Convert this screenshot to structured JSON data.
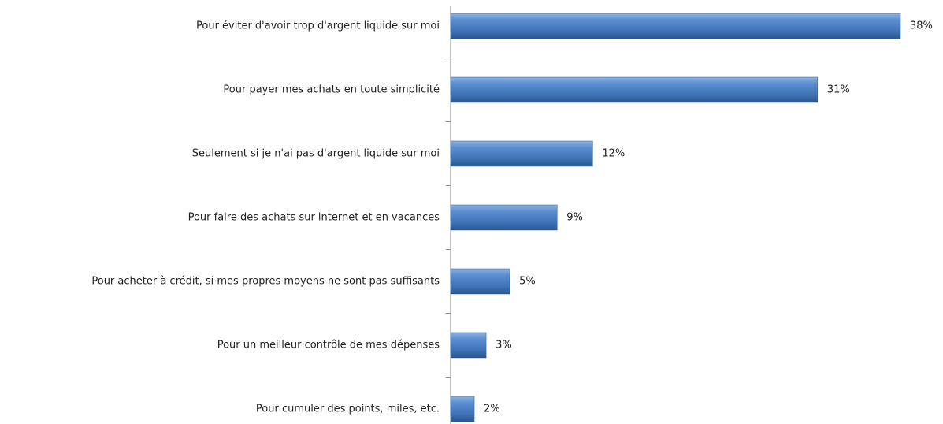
{
  "chart_data": {
    "type": "bar",
    "orientation": "horizontal",
    "categories": [
      "Pour éviter d'avoir trop d'argent liquide sur moi",
      "Pour payer mes achats en toute simplicité",
      "Seulement si je n'ai pas d'argent liquide sur moi",
      "Pour faire des achats sur internet et en vacances",
      "Pour acheter à crédit, si mes propres moyens ne sont pas suffisants",
      "Pour un meilleur contrôle de mes dépenses",
      "Pour cumuler des points, miles, etc."
    ],
    "values": [
      38,
      31,
      12,
      9,
      5,
      3,
      2
    ],
    "value_labels": [
      "38%",
      "31%",
      "12%",
      "9%",
      "5%",
      "3%",
      "2%"
    ],
    "color": "#4a7ebf"
  }
}
